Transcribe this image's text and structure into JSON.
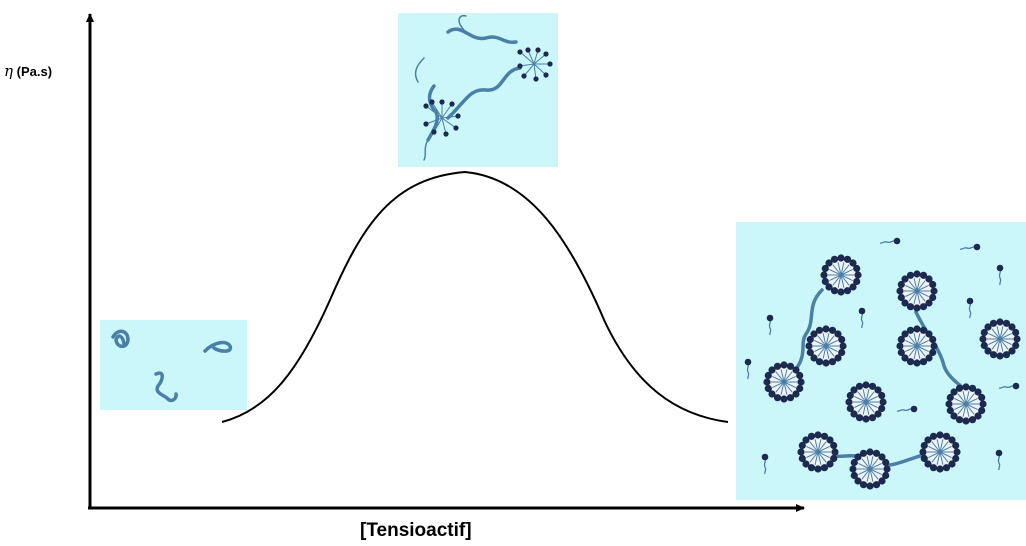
{
  "axes": {
    "y_symbol": "η",
    "y_unit": "(Pa.s)",
    "x_label": "[Tensioactif]"
  },
  "panels": [
    {
      "id": "low-concentration",
      "content": "free polymer chains"
    },
    {
      "id": "peak",
      "content": "polymer chains bridged by surfactant micelles"
    },
    {
      "id": "high-concentration",
      "content": "surfactant micelles and free surfactant molecules"
    }
  ],
  "colors": {
    "panel_background": "#ccf7fa",
    "polymer": "#4a7fa6",
    "micelle_head": "#1b2a4e",
    "micelle_core": "#eef3f8",
    "curve": "#000000"
  }
}
